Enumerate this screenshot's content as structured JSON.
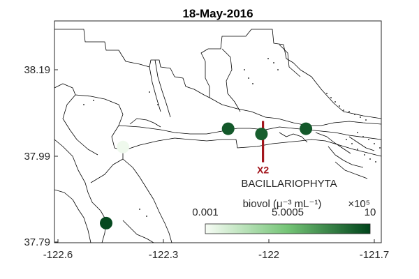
{
  "title": "18-May-2016",
  "chart_data": {
    "type": "scatter",
    "title": "18-May-2016",
    "x_ticks": [
      "-122.6",
      "-122.3",
      "-122",
      "-121.7"
    ],
    "y_ticks": [
      "38.19",
      "37.99",
      "37.79"
    ],
    "xlim": [
      -122.6,
      -121.55
    ],
    "ylim": [
      37.79,
      38.3
    ],
    "points": [
      {
        "lon": -122.38,
        "lat": 38.01,
        "value": 0.3
      },
      {
        "lon": -122.042,
        "lat": 38.052,
        "value": 9.2
      },
      {
        "lon": -121.935,
        "lat": 38.04,
        "value": 9.0
      },
      {
        "lon": -121.792,
        "lat": 38.052,
        "value": 9.2
      },
      {
        "lon": -122.434,
        "lat": 37.835,
        "value": 9.8
      }
    ],
    "marker": {
      "label": "X2",
      "lon": -121.93,
      "lat_bottom": 37.975,
      "lat_top": 38.07,
      "color": "#a3161d"
    },
    "colorbar": {
      "title_line1": "BACILLARIOPHYTA",
      "title_line2": "biovol (μ⁻³ mL⁻¹)",
      "exponent": "×10⁵",
      "tick_labels": [
        "0.001",
        "5.0005",
        "10"
      ],
      "min": 0.001,
      "max": 10,
      "color_low": "#f7fcf5",
      "color_mid": "#74c476",
      "color_high": "#00441b"
    }
  }
}
